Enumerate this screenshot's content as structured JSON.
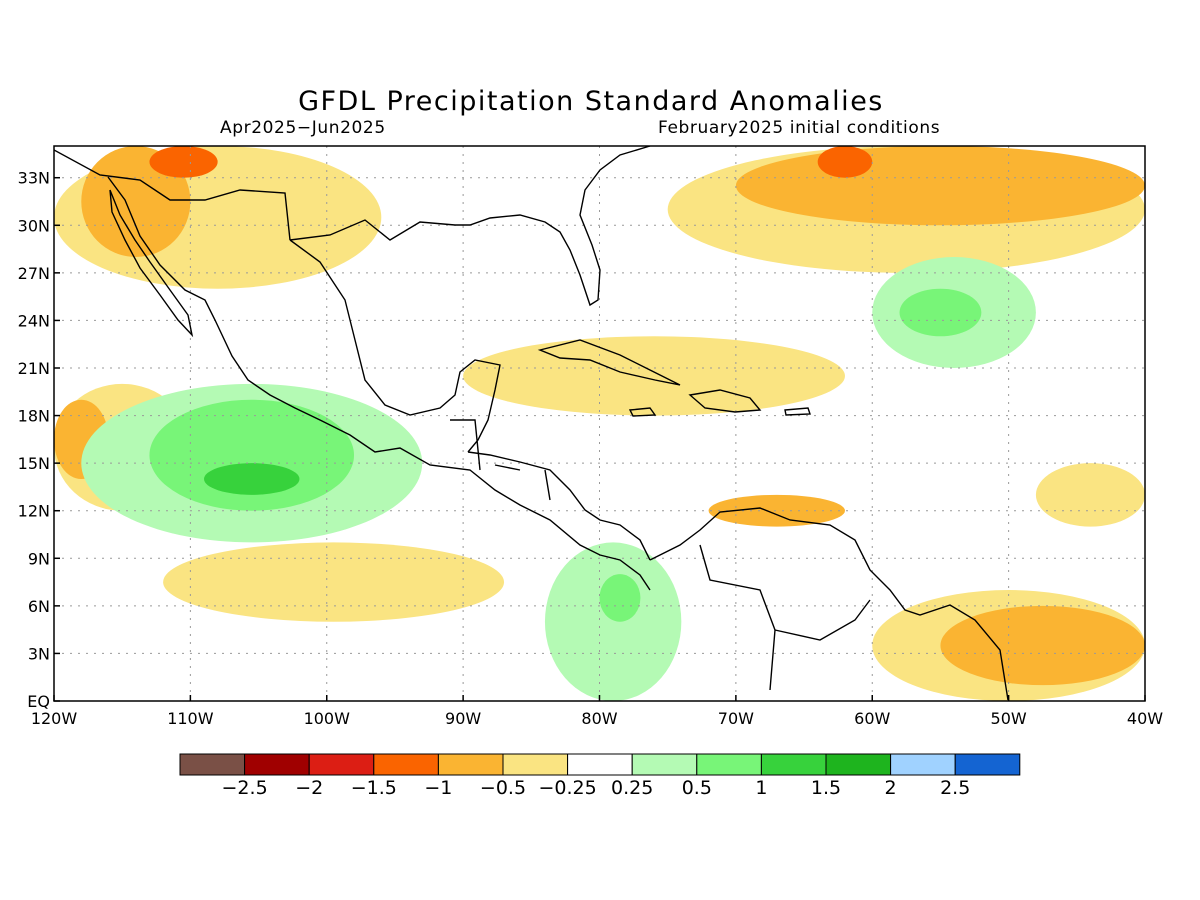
{
  "title": "GFDL Precipitation Standard Anomalies",
  "period": "Apr2025−Jun2025",
  "initial_conditions": "February2025 initial conditions",
  "chart_data": {
    "type": "heatmap",
    "lon_range": [
      -120,
      -40
    ],
    "lat_range": [
      0,
      35
    ],
    "grid": true,
    "x_ticks": [
      "120W",
      "110W",
      "100W",
      "90W",
      "80W",
      "70W",
      "60W",
      "50W",
      "40W"
    ],
    "y_ticks": [
      "EQ",
      "3N",
      "6N",
      "9N",
      "12N",
      "15N",
      "18N",
      "21N",
      "24N",
      "27N",
      "30N",
      "33N"
    ],
    "colorbar": {
      "colors": [
        "#7a5046",
        "#a00000",
        "#dc1e14",
        "#fa6400",
        "#fab432",
        "#fae482",
        "#ffffff",
        "#b4fab4",
        "#78f578",
        "#37d23c",
        "#1eb41e",
        "#a0d2ff",
        "#1464d2"
      ],
      "labels": [
        "−2.5",
        "−2",
        "−1.5",
        "−1",
        "−0.5",
        "−0.25",
        "0.25",
        "0.5",
        "1",
        "1.5",
        "2",
        "2.5"
      ]
    },
    "regions": [
      {
        "level": "-0.25",
        "lon": [
          -120,
          -96
        ],
        "lat": [
          26,
          35
        ]
      },
      {
        "level": "-0.5",
        "lon": [
          -118,
          -110
        ],
        "lat": [
          28,
          35
        ]
      },
      {
        "level": "-1",
        "lon": [
          -113,
          -108
        ],
        "lat": [
          33,
          35
        ]
      },
      {
        "level": "-0.25",
        "lon": [
          -75,
          -40
        ],
        "lat": [
          27,
          35
        ]
      },
      {
        "level": "-0.5",
        "lon": [
          -70,
          -40
        ],
        "lat": [
          30,
          35
        ]
      },
      {
        "level": "-1",
        "lon": [
          -64,
          -60
        ],
        "lat": [
          33,
          35
        ]
      },
      {
        "level": "-0.25",
        "lon": [
          -120,
          -110
        ],
        "lat": [
          12,
          20
        ]
      },
      {
        "level": "-0.5",
        "lon": [
          -120,
          -116
        ],
        "lat": [
          14,
          19
        ]
      },
      {
        "level": "0.25",
        "lon": [
          -118,
          -93
        ],
        "lat": [
          10,
          20
        ]
      },
      {
        "level": "0.5",
        "lon": [
          -113,
          -98
        ],
        "lat": [
          12,
          19
        ]
      },
      {
        "level": "1",
        "lon": [
          -109,
          -102
        ],
        "lat": [
          13,
          15
        ]
      },
      {
        "level": "0.25",
        "lon": [
          -84,
          -74
        ],
        "lat": [
          0,
          10
        ]
      },
      {
        "level": "0.5",
        "lon": [
          -80,
          -77
        ],
        "lat": [
          5,
          8
        ]
      },
      {
        "level": "0.25",
        "lon": [
          -60,
          -48
        ],
        "lat": [
          21,
          28
        ]
      },
      {
        "level": "0.5",
        "lon": [
          -58,
          -52
        ],
        "lat": [
          23,
          26
        ]
      },
      {
        "level": "-0.25",
        "lon": [
          -112,
          -87
        ],
        "lat": [
          5,
          10
        ]
      },
      {
        "level": "-0.25",
        "lon": [
          -90,
          -62
        ],
        "lat": [
          18,
          23
        ]
      },
      {
        "level": "-0.5",
        "lon": [
          -72,
          -62
        ],
        "lat": [
          11,
          13
        ]
      },
      {
        "level": "-0.25",
        "lon": [
          -60,
          -40
        ],
        "lat": [
          0,
          7
        ]
      },
      {
        "level": "-0.5",
        "lon": [
          -55,
          -40
        ],
        "lat": [
          1,
          6
        ]
      },
      {
        "level": "-0.25",
        "lon": [
          -48,
          -40
        ],
        "lat": [
          11,
          15
        ]
      }
    ]
  }
}
